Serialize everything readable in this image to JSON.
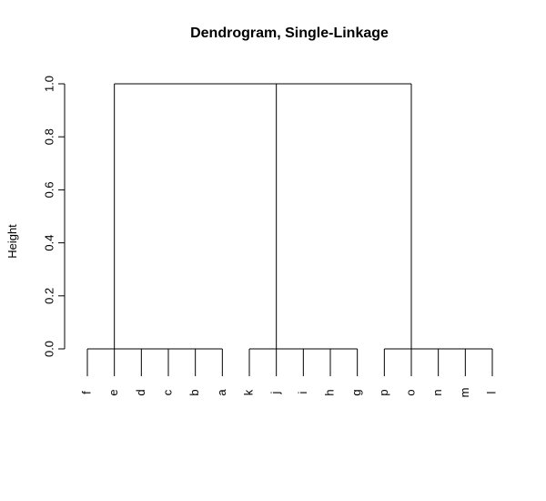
{
  "chart_data": {
    "type": "dendrogram",
    "title": "Dendrogram, Single-Linkage",
    "ylabel": "Height",
    "leaves": [
      "f",
      "e",
      "d",
      "c",
      "b",
      "a",
      "k",
      "j",
      "i",
      "h",
      "g",
      "p",
      "o",
      "n",
      "m",
      "l"
    ],
    "merges": [
      {
        "leaves": [
          0,
          1,
          2,
          3,
          4,
          5
        ],
        "height": 0
      },
      {
        "leaves": [
          6,
          7,
          8,
          9,
          10
        ],
        "height": 0
      },
      {
        "leaves": [
          11,
          12,
          13,
          14,
          15
        ],
        "height": 0
      }
    ],
    "root_height": 1,
    "ylim": [
      0,
      1
    ],
    "yticks": [
      {
        "value": 0,
        "label": "0.0"
      },
      {
        "value": 0.2,
        "label": "0.2"
      },
      {
        "value": 0.4,
        "label": "0.4"
      },
      {
        "value": 0.6,
        "label": "0.6"
      },
      {
        "value": 0.8,
        "label": "0.8"
      },
      {
        "value": 1,
        "label": "1.0"
      }
    ]
  }
}
